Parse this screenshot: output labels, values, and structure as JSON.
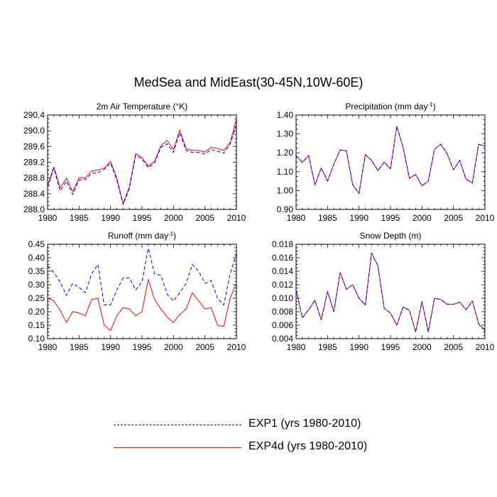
{
  "figure": {
    "title": "MedSea and MidEast(30-45N,10W-60E)"
  },
  "legend": {
    "items": [
      {
        "label": "EXP1 (yrs 1980-2010)",
        "color": "#0000ff",
        "style": "dashed"
      },
      {
        "label": "EXP4d (yrs 1980-2010)",
        "color": "#ff0000",
        "style": "solid"
      }
    ]
  },
  "chart_data": [
    {
      "type": "line",
      "title": "2m Air Temperature",
      "title_unit": "(°K)",
      "xlim": [
        1980,
        2010
      ],
      "ylim": [
        288.0,
        290.4
      ],
      "xticks": [
        "1980",
        "1985",
        "1990",
        "1995",
        "2000",
        "2005",
        "2010"
      ],
      "yticks": [
        "288.0",
        "288.4",
        "288.8",
        "289.2",
        "289.6",
        "290.0",
        "290.4"
      ],
      "x": [
        1980,
        1981,
        1982,
        1983,
        1984,
        1985,
        1986,
        1987,
        1988,
        1989,
        1990,
        1991,
        1992,
        1993,
        1994,
        1995,
        1996,
        1997,
        1998,
        1999,
        2000,
        2001,
        2002,
        2003,
        2004,
        2005,
        2006,
        2007,
        2008,
        2009,
        2010
      ],
      "series": [
        {
          "name": "EXP1 (yrs 1980-2010)",
          "color": "#0000ff",
          "style": "dashed",
          "values": [
            288.56,
            289.05,
            288.47,
            288.72,
            288.38,
            288.75,
            288.76,
            288.92,
            288.93,
            289.02,
            289.18,
            288.75,
            288.12,
            288.53,
            289.38,
            289.28,
            289.06,
            289.18,
            289.58,
            289.67,
            289.45,
            289.95,
            289.5,
            289.45,
            289.45,
            289.41,
            289.52,
            289.48,
            289.43,
            289.66,
            290.15
          ]
        },
        {
          "name": "EXP4d (yrs 1980-2010)",
          "color": "#ff0000",
          "style": "solid",
          "values": [
            288.6,
            289.08,
            288.55,
            288.8,
            288.45,
            288.8,
            288.8,
            288.98,
            289.0,
            289.05,
            289.22,
            288.8,
            288.15,
            288.58,
            289.42,
            289.32,
            289.1,
            289.22,
            289.62,
            289.75,
            289.52,
            290.02,
            289.55,
            289.5,
            289.5,
            289.46,
            289.58,
            289.55,
            289.5,
            289.7,
            290.3
          ]
        }
      ]
    },
    {
      "type": "line",
      "title": "Precipitation (mm day",
      "title_unit": "-1",
      "title_suffix": ")",
      "xlim": [
        1980,
        2010
      ],
      "ylim": [
        0.9,
        1.4
      ],
      "xticks": [
        "1980",
        "1985",
        "1990",
        "1995",
        "2000",
        "2005",
        "2010"
      ],
      "yticks": [
        "0.90",
        "1.00",
        "1.10",
        "1.20",
        "1.30",
        "1.40"
      ],
      "x": [
        1980,
        1981,
        1982,
        1983,
        1984,
        1985,
        1986,
        1987,
        1988,
        1989,
        1990,
        1991,
        1992,
        1993,
        1994,
        1995,
        1996,
        1997,
        1998,
        1999,
        2000,
        2001,
        2002,
        2003,
        2004,
        2005,
        2006,
        2007,
        2008,
        2009,
        2010
      ],
      "series": [
        {
          "name": "EXP1 (yrs 1980-2010)",
          "color": "#0000ff",
          "style": "dashed",
          "values": [
            1.185,
            1.15,
            1.185,
            1.03,
            1.12,
            1.05,
            1.14,
            1.215,
            1.21,
            1.03,
            0.985,
            1.19,
            1.16,
            1.105,
            1.15,
            1.115,
            1.34,
            1.23,
            1.065,
            1.085,
            1.025,
            1.05,
            1.22,
            1.245,
            1.195,
            1.11,
            1.16,
            1.06,
            1.04,
            1.245,
            1.235
          ]
        },
        {
          "name": "EXP4d (yrs 1980-2010)",
          "color": "#ff0000",
          "style": "solid",
          "values": [
            1.185,
            1.15,
            1.185,
            1.03,
            1.12,
            1.05,
            1.14,
            1.215,
            1.21,
            1.03,
            0.985,
            1.19,
            1.16,
            1.105,
            1.15,
            1.115,
            1.34,
            1.23,
            1.065,
            1.085,
            1.025,
            1.05,
            1.22,
            1.245,
            1.195,
            1.11,
            1.16,
            1.06,
            1.04,
            1.245,
            1.235
          ]
        }
      ]
    },
    {
      "type": "line",
      "title": "Runoff (mm day",
      "title_unit": "-1",
      "title_suffix": ")",
      "xlim": [
        1980,
        2010
      ],
      "ylim": [
        0.1,
        0.45
      ],
      "xticks": [
        "1980",
        "1985",
        "1990",
        "1995",
        "2000",
        "2005",
        "2010"
      ],
      "yticks": [
        "0.10",
        "0.15",
        "0.20",
        "0.25",
        "0.30",
        "0.35",
        "0.40",
        "0.45"
      ],
      "x": [
        1980,
        1981,
        1982,
        1983,
        1984,
        1985,
        1986,
        1987,
        1988,
        1989,
        1990,
        1991,
        1992,
        1993,
        1994,
        1995,
        1996,
        1997,
        1998,
        1999,
        2000,
        2001,
        2002,
        2003,
        2004,
        2005,
        2006,
        2007,
        2008,
        2009,
        2010
      ],
      "series": [
        {
          "name": "EXP1 (yrs 1980-2010)",
          "color": "#0000ff",
          "style": "dashed",
          "values": [
            0.37,
            0.345,
            0.31,
            0.26,
            0.305,
            0.29,
            0.27,
            0.34,
            0.375,
            0.225,
            0.225,
            0.28,
            0.325,
            0.325,
            0.28,
            0.31,
            0.435,
            0.34,
            0.335,
            0.265,
            0.24,
            0.27,
            0.305,
            0.375,
            0.35,
            0.305,
            0.315,
            0.25,
            0.225,
            0.34,
            0.415
          ]
        },
        {
          "name": "EXP4d (yrs 1980-2010)",
          "color": "#ff0000",
          "style": "solid",
          "values": [
            0.25,
            0.24,
            0.205,
            0.16,
            0.2,
            0.195,
            0.185,
            0.245,
            0.25,
            0.15,
            0.13,
            0.185,
            0.215,
            0.21,
            0.185,
            0.2,
            0.32,
            0.245,
            0.21,
            0.18,
            0.16,
            0.19,
            0.21,
            0.27,
            0.24,
            0.21,
            0.215,
            0.15,
            0.145,
            0.25,
            0.305
          ]
        }
      ]
    },
    {
      "type": "line",
      "title": "Snow Depth (m)",
      "xlim": [
        1980,
        2010
      ],
      "ylim": [
        0.004,
        0.018
      ],
      "xticks": [
        "1980",
        "1985",
        "1990",
        "1995",
        "2000",
        "2005",
        "2010"
      ],
      "yticks": [
        "0.004",
        "0.006",
        "0.008",
        "0.010",
        "0.012",
        "0.014",
        "0.016",
        "0.018"
      ],
      "x": [
        1980,
        1981,
        1982,
        1983,
        1984,
        1985,
        1986,
        1987,
        1988,
        1989,
        1990,
        1991,
        1992,
        1993,
        1994,
        1995,
        1996,
        1997,
        1998,
        1999,
        2000,
        2001,
        2002,
        2003,
        2004,
        2005,
        2006,
        2007,
        2008,
        2009,
        2010
      ],
      "series": [
        {
          "name": "EXP1 (yrs 1980-2010)",
          "color": "#0000ff",
          "style": "dashed",
          "values": [
            0.0112,
            0.0071,
            0.0083,
            0.0097,
            0.0068,
            0.011,
            0.008,
            0.0138,
            0.0113,
            0.012,
            0.01,
            0.009,
            0.0167,
            0.0148,
            0.0085,
            0.0078,
            0.006,
            0.0087,
            0.0082,
            0.005,
            0.0095,
            0.005,
            0.01,
            0.0098,
            0.0091,
            0.0091,
            0.0094,
            0.0083,
            0.0096,
            0.0062,
            0.0052
          ]
        },
        {
          "name": "EXP4d (yrs 1980-2010)",
          "color": "#ff0000",
          "style": "solid",
          "values": [
            0.0112,
            0.0071,
            0.0083,
            0.0097,
            0.0068,
            0.011,
            0.008,
            0.0138,
            0.0113,
            0.012,
            0.01,
            0.009,
            0.0167,
            0.0148,
            0.0085,
            0.0078,
            0.006,
            0.0087,
            0.0082,
            0.005,
            0.0095,
            0.005,
            0.01,
            0.0098,
            0.0091,
            0.0091,
            0.0094,
            0.0083,
            0.0096,
            0.0062,
            0.0052
          ]
        }
      ]
    }
  ]
}
